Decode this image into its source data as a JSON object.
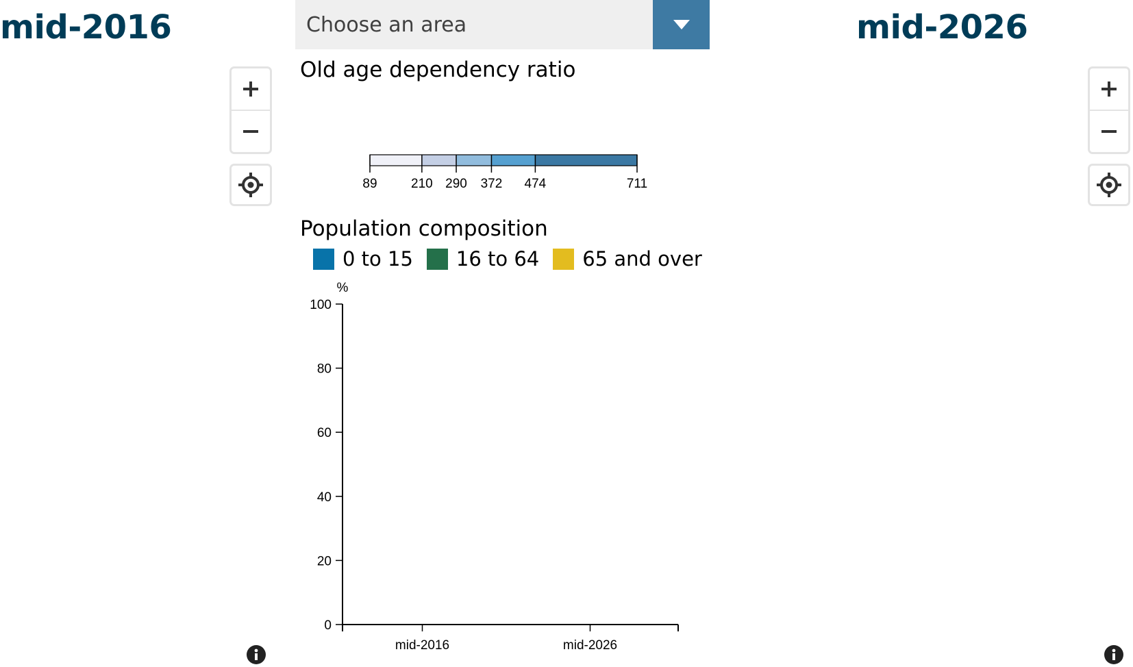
{
  "left_map": {
    "title": "mid-2016",
    "zoom_in_icon": "plus-icon",
    "zoom_out_icon": "minus-icon",
    "locate_icon": "crosshair-icon",
    "info_icon": "info-icon"
  },
  "right_map": {
    "title": "mid-2026",
    "zoom_in_icon": "plus-icon",
    "zoom_out_icon": "minus-icon",
    "locate_icon": "crosshair-icon",
    "info_icon": "info-icon"
  },
  "area_select": {
    "placeholder": "Choose an area",
    "arrow_icon": "caret-down-icon",
    "accent_color": "#3e7aa3",
    "background_color": "#efefef"
  },
  "ratio": {
    "heading": "Old age dependency ratio",
    "breaks": [
      89,
      210,
      290,
      372,
      474,
      711
    ],
    "break_labels": [
      "89",
      "210",
      "290",
      "372",
      "474",
      "711"
    ],
    "colors": [
      "#f0f1f8",
      "#c4cfe5",
      "#91bcdd",
      "#55a0d0",
      "#3b78a3"
    ]
  },
  "composition": {
    "heading": "Population composition",
    "legend": [
      {
        "label": "0 to 15",
        "color": "#0873a9"
      },
      {
        "label": "16 to 64",
        "color": "#24704a"
      },
      {
        "label": "65 and over",
        "color": "#e3bc1f"
      }
    ]
  },
  "chart_data": {
    "type": "bar",
    "stacked": true,
    "ylabel": "%",
    "ylim": [
      0,
      100
    ],
    "yticks": [
      0,
      20,
      40,
      60,
      80,
      100
    ],
    "categories": [
      "mid-2016",
      "mid-2026"
    ],
    "series": [
      {
        "name": "0 to 15",
        "values": [
          null,
          null
        ]
      },
      {
        "name": "16 to 64",
        "values": [
          null,
          null
        ]
      },
      {
        "name": "65 and over",
        "values": [
          null,
          null
        ]
      }
    ]
  }
}
